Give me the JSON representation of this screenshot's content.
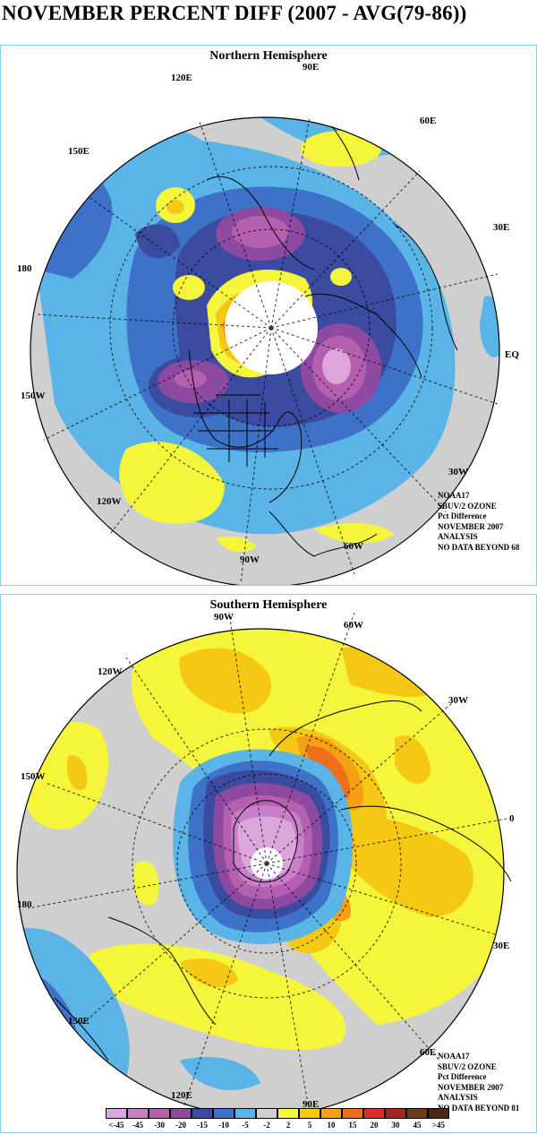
{
  "title": "NOVEMBER PERCENT DIFF (2007 - AVG(79-86))",
  "colors": {
    "lt-45": "#dca5dc",
    "m45": "#c87ec8",
    "m30": "#b45fb0",
    "m20": "#8e4aa0",
    "m15": "#3b4ba0",
    "m10": "#3d72c8",
    "m5": "#5ab4e6",
    "m2": "#cfcfcf",
    "p2": "#f5f53c",
    "p5": "#f5c814",
    "p10": "#f5a014",
    "p15": "#ee6e1e",
    "p20": "#dc2d2d",
    "p30": "#a0281e",
    "p45": "#6e3c14",
    "gt45": "#4b2812",
    "land": "#000000",
    "nodata": "#ffffff"
  },
  "northern": {
    "title": "Northern Hemisphere",
    "labels": {
      "l90e": "90E",
      "l120e": "120E",
      "l60e": "60E",
      "l150e": "150E",
      "l30e": "30E",
      "l180": "180",
      "leq": "EQ",
      "l150w": "150W",
      "l30w": "30W",
      "l120w": "120W",
      "l90w": "90W",
      "l60w": "60W"
    },
    "info": [
      "NOAA17",
      "SBUV/2 OZONE",
      "Pct Difference",
      "NOVEMBER 2007",
      "ANALYSIS",
      "NO DATA BEYOND  68"
    ]
  },
  "southern": {
    "title": "Southern Hemisphere",
    "labels": {
      "l90w": "90W",
      "l60w": "60W",
      "l120w": "120W",
      "l30w": "30W",
      "l150w": "150W",
      "l0": "0",
      "l180": "180",
      "l30e": "30E",
      "l150e": "150E",
      "l60e": "60E",
      "l120e": "120E",
      "l90e": "90E"
    },
    "info": [
      "NOAA17",
      "SBUV/2 OZONE",
      "Pct Difference",
      "NOVEMBER 2007",
      "ANALYSIS",
      "NO DATA BEYOND  81"
    ]
  },
  "legend": {
    "labels": [
      "<-45",
      "-45",
      "-30",
      "-20",
      "-15",
      "-10",
      "-5",
      "-2",
      "2",
      "5",
      "10",
      "15",
      "20",
      "30",
      "45",
      ">45"
    ]
  }
}
